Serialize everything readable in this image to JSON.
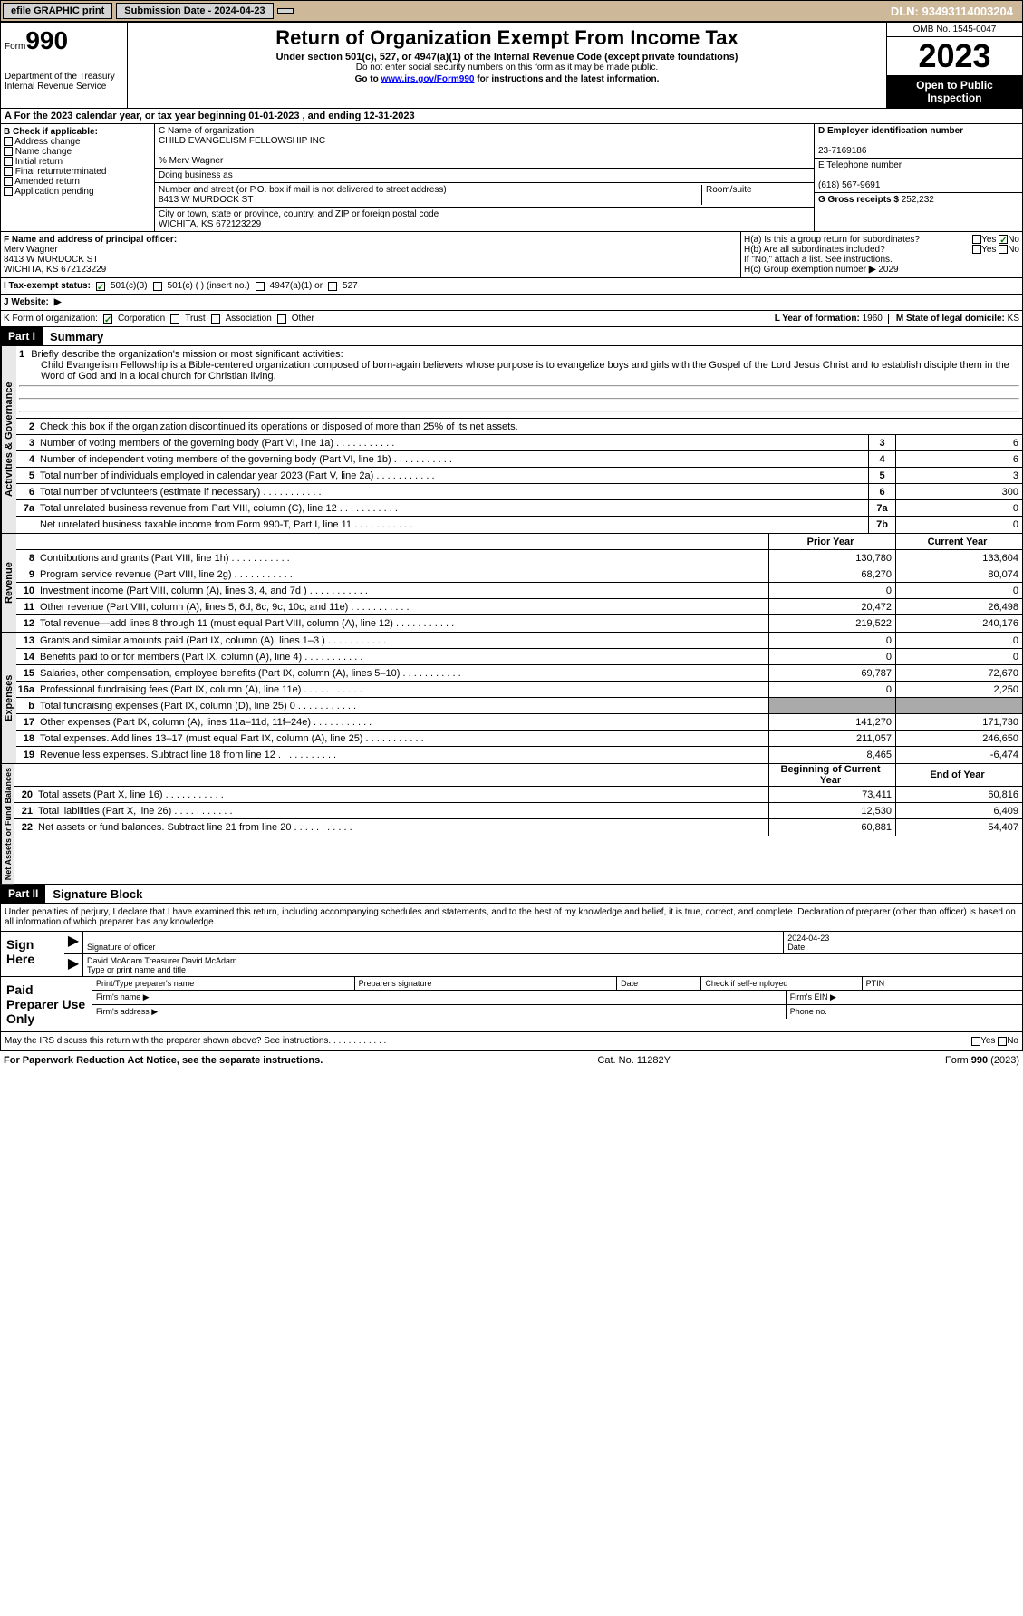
{
  "toolbar": {
    "efile": "efile GRAPHIC print",
    "submission": "Submission Date - 2024-04-23",
    "dln": "DLN: 93493114003204"
  },
  "header": {
    "form_label": "Form",
    "form_num": "990",
    "dept": "Department of the Treasury\nInternal Revenue Service",
    "title": "Return of Organization Exempt From Income Tax",
    "subtitle": "Under section 501(c), 527, or 4947(a)(1) of the Internal Revenue Code (except private foundations)",
    "ssn_warn": "Do not enter social security numbers on this form as it may be made public.",
    "goto": "Go to ",
    "link": "www.irs.gov/Form990",
    "goto_suffix": " for instructions and the latest information.",
    "omb": "OMB No. 1545-0047",
    "year": "2023",
    "public": "Open to Public Inspection"
  },
  "line_a": "A   For the 2023 calendar year, or tax year beginning 01-01-2023    , and ending 12-31-2023",
  "section_b": {
    "label": "B Check if applicable:",
    "opts": [
      "Address change",
      "Name change",
      "Initial return",
      "Final return/terminated",
      "Amended return",
      "Application pending"
    ]
  },
  "section_c": {
    "name_label": "C Name of organization",
    "name": "CHILD EVANGELISM FELLOWSHIP INC",
    "care_of": "% Merv Wagner",
    "dba_label": "Doing business as",
    "street_label": "Number and street (or P.O. box if mail is not delivered to street address)",
    "street": "8413 W MURDOCK ST",
    "room_label": "Room/suite",
    "city_label": "City or town, state or province, country, and ZIP or foreign postal code",
    "city": "WICHITA, KS  672123229"
  },
  "section_d": {
    "ein_label": "D Employer identification number",
    "ein": "23-7169186",
    "phone_label": "E Telephone number",
    "phone": "(618) 567-9691",
    "gross_label": "G Gross receipts $",
    "gross": "252,232"
  },
  "section_f": {
    "label": "F Name and address of principal officer:",
    "name": "Merv Wagner",
    "street": "8413 W MURDOCK ST",
    "city": "WICHITA, KS  672123229"
  },
  "section_h": {
    "ha": "H(a)  Is this a group return for subordinates?",
    "no_checked": "No",
    "hb": "H(b)  Are all subordinates included?",
    "hb_note": "If \"No,\" attach a list. See instructions.",
    "hc": "H(c)  Group exemption number ",
    "hc_val": "2029"
  },
  "tax_exempt": {
    "label": "I    Tax-exempt status:",
    "c3": "501(c)(3)",
    "c": "501(c) (  ) (insert no.)",
    "a1": "4947(a)(1) or",
    "s527": "527"
  },
  "website": {
    "label": "J   Website:",
    "val": " "
  },
  "form_org": {
    "label": "K Form of organization:",
    "corp": "Corporation",
    "trust": "Trust",
    "assoc": "Association",
    "other": "Other",
    "year_label": "L Year of formation:",
    "year": "1960",
    "state_label": "M State of legal domicile:",
    "state": "KS"
  },
  "part1": {
    "header": "Part I",
    "title": "Summary",
    "sections": {
      "gov": "Activities & Governance",
      "rev": "Revenue",
      "exp": "Expenses",
      "net": "Net Assets or Fund Balances"
    },
    "q1_label": "Briefly describe the organization's mission or most significant activities:",
    "q1_text": "Child Evangelism Fellowship is a Bible-centered organization composed of born-again believers whose purpose is to evangelize boys and girls with the Gospel of the Lord Jesus Christ and to establish disciple them in the Word of God and in a local church for Christian living.",
    "q2": "Check this box      if the organization discontinued its operations or disposed of more than 25% of its net assets.",
    "rows_gov": [
      {
        "n": "3",
        "label": "Number of voting members of the governing body (Part VI, line 1a)",
        "box": "3",
        "val": "6"
      },
      {
        "n": "4",
        "label": "Number of independent voting members of the governing body (Part VI, line 1b)",
        "box": "4",
        "val": "6"
      },
      {
        "n": "5",
        "label": "Total number of individuals employed in calendar year 2023 (Part V, line 2a)",
        "box": "5",
        "val": "3"
      },
      {
        "n": "6",
        "label": "Total number of volunteers (estimate if necessary)",
        "box": "6",
        "val": "300"
      },
      {
        "n": "7a",
        "label": "Total unrelated business revenue from Part VIII, column (C), line 12",
        "box": "7a",
        "val": "0"
      },
      {
        "n": "",
        "label": "Net unrelated business taxable income from Form 990-T, Part I, line 11",
        "box": "7b",
        "val": "0"
      }
    ],
    "head_prior": "Prior Year",
    "head_current": "Current Year",
    "rows_rev": [
      {
        "n": "8",
        "label": "Contributions and grants (Part VIII, line 1h)",
        "p": "130,780",
        "c": "133,604"
      },
      {
        "n": "9",
        "label": "Program service revenue (Part VIII, line 2g)",
        "p": "68,270",
        "c": "80,074"
      },
      {
        "n": "10",
        "label": "Investment income (Part VIII, column (A), lines 3, 4, and 7d )",
        "p": "0",
        "c": "0"
      },
      {
        "n": "11",
        "label": "Other revenue (Part VIII, column (A), lines 5, 6d, 8c, 9c, 10c, and 11e)",
        "p": "20,472",
        "c": "26,498"
      },
      {
        "n": "12",
        "label": "Total revenue—add lines 8 through 11 (must equal Part VIII, column (A), line 12)",
        "p": "219,522",
        "c": "240,176"
      }
    ],
    "rows_exp": [
      {
        "n": "13",
        "label": "Grants and similar amounts paid (Part IX, column (A), lines 1–3 )",
        "p": "0",
        "c": "0"
      },
      {
        "n": "14",
        "label": "Benefits paid to or for members (Part IX, column (A), line 4)",
        "p": "0",
        "c": "0"
      },
      {
        "n": "15",
        "label": "Salaries, other compensation, employee benefits (Part IX, column (A), lines 5–10)",
        "p": "69,787",
        "c": "72,670"
      },
      {
        "n": "16a",
        "label": "Professional fundraising fees (Part IX, column (A), line 11e)",
        "p": "0",
        "c": "2,250"
      },
      {
        "n": "b",
        "label": "Total fundraising expenses (Part IX, column (D), line 25) 0",
        "p": "",
        "c": "",
        "shaded": true
      },
      {
        "n": "17",
        "label": "Other expenses (Part IX, column (A), lines 11a–11d, 11f–24e)",
        "p": "141,270",
        "c": "171,730"
      },
      {
        "n": "18",
        "label": "Total expenses. Add lines 13–17 (must equal Part IX, column (A), line 25)",
        "p": "211,057",
        "c": "246,650"
      },
      {
        "n": "19",
        "label": "Revenue less expenses. Subtract line 18 from line 12",
        "p": "8,465",
        "c": "-6,474"
      }
    ],
    "head_begin": "Beginning of Current Year",
    "head_end": "End of Year",
    "rows_net": [
      {
        "n": "20",
        "label": "Total assets (Part X, line 16)",
        "p": "73,411",
        "c": "60,816"
      },
      {
        "n": "21",
        "label": "Total liabilities (Part X, line 26)",
        "p": "12,530",
        "c": "6,409"
      },
      {
        "n": "22",
        "label": "Net assets or fund balances. Subtract line 21 from line 20",
        "p": "60,881",
        "c": "54,407"
      }
    ]
  },
  "part2": {
    "header": "Part II",
    "title": "Signature Block",
    "declaration": "Under penalties of perjury, I declare that I have examined this return, including accompanying schedules and statements, and to the best of my knowledge and belief, it is true, correct, and complete. Declaration of preparer (other than officer) is based on all information of which preparer has any knowledge.",
    "sign_here": "Sign Here",
    "sig_date": "2024-04-23",
    "sig_label": "Signature of officer",
    "officer": "David McAdam Treasurer  David McAdam",
    "type_label": "Type or print name and title",
    "date_label": "Date",
    "paid": "Paid Preparer Use Only",
    "prep_name": "Print/Type preparer's name",
    "prep_sig": "Preparer's signature",
    "check_se": "Check       if self-employed",
    "ptin": "PTIN",
    "firm_name": "Firm's name",
    "firm_ein": "Firm's EIN",
    "firm_addr": "Firm's address",
    "phone": "Phone no.",
    "may_irs": "May the IRS discuss this return with the preparer shown above? See instructions.",
    "yes": "Yes",
    "no": "No"
  },
  "footer": {
    "notice": "For Paperwork Reduction Act Notice, see the separate instructions.",
    "cat": "Cat. No. 11282Y",
    "form": "Form 990 (2023)"
  }
}
